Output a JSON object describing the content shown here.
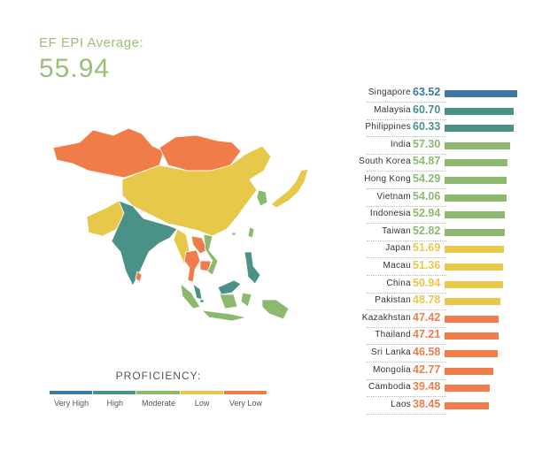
{
  "header": {
    "label": "EF EPI Average:",
    "value": "55.94"
  },
  "colors": {
    "very_high": "#3d77a2",
    "high": "#4a9187",
    "moderate": "#8db96e",
    "low": "#e8c84a",
    "very_low": "#f07c4a",
    "country_text": "#333333"
  },
  "legend": {
    "title": "PROFICIENCY:",
    "items": [
      {
        "label": "Very High",
        "color": "#3d77a2"
      },
      {
        "label": "High",
        "color": "#4a9187"
      },
      {
        "label": "Moderate",
        "color": "#8db96e"
      },
      {
        "label": "Low",
        "color": "#e8c84a"
      },
      {
        "label": "Very Low",
        "color": "#f07c4a"
      }
    ]
  },
  "chart_data": {
    "type": "bar",
    "orientation": "horizontal",
    "categories": [
      "Singapore",
      "Malaysia",
      "Philippines",
      "India",
      "South Korea",
      "Hong Kong",
      "Vietnam",
      "Indonesia",
      "Taiwan",
      "Japan",
      "Macau",
      "China",
      "Pakistan",
      "Kazakhstan",
      "Thailand",
      "Sri Lanka",
      "Mongolia",
      "Cambodia",
      "Laos"
    ],
    "values": [
      63.52,
      60.7,
      60.33,
      57.3,
      54.87,
      54.29,
      54.06,
      52.94,
      52.82,
      51.69,
      51.36,
      50.94,
      48.78,
      47.42,
      47.21,
      46.58,
      42.77,
      39.48,
      38.45
    ],
    "value_labels": [
      "63.52",
      "60.70",
      "60.33",
      "57.30",
      "54.87",
      "54.29",
      "54.06",
      "52.94",
      "52.82",
      "51.69",
      "51.36",
      "50.94",
      "48.78",
      "47.42",
      "47.21",
      "46.58",
      "42.77",
      "39.48",
      "38.45"
    ],
    "proficiency": [
      "very_high",
      "high",
      "high",
      "moderate",
      "moderate",
      "moderate",
      "moderate",
      "moderate",
      "moderate",
      "low",
      "low",
      "low",
      "low",
      "very_low",
      "very_low",
      "very_low",
      "very_low",
      "very_low",
      "very_low"
    ],
    "xlim": [
      0,
      63.52
    ]
  }
}
